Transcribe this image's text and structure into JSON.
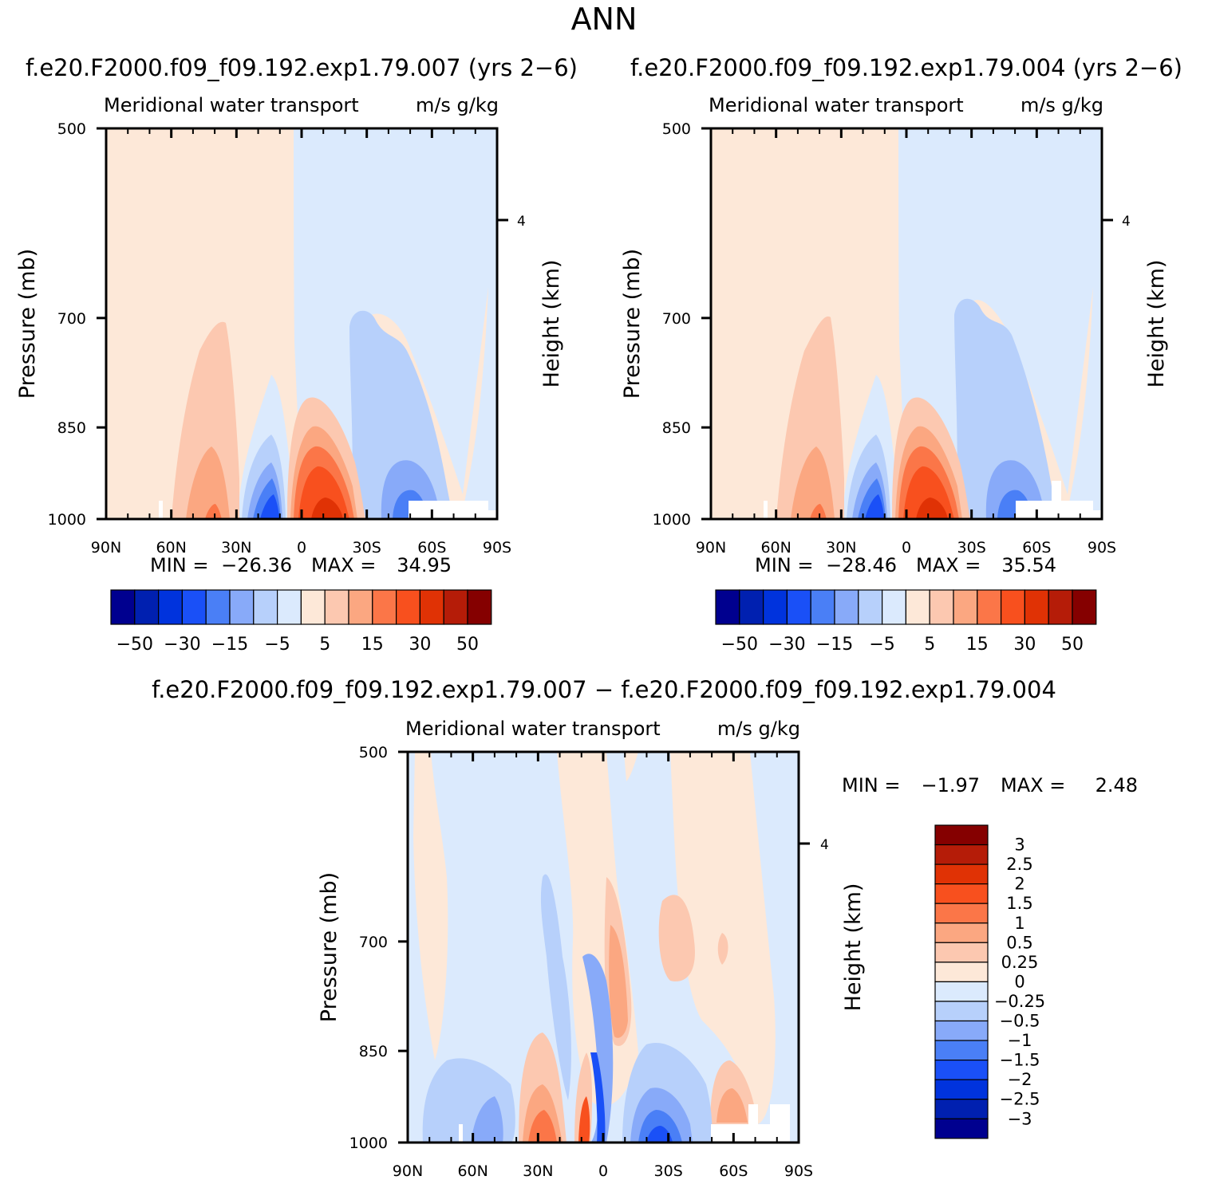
{
  "figure_title": "ANN",
  "chart_data": [
    {
      "type": "heatmap",
      "id": "p1",
      "case_title": "f.e20.F2000.f09_f09.192.exp1.79.007 (yrs 2−6)",
      "title_left": "Meridional water transport",
      "title_right": "m/s g/kg",
      "ylabel": "Pressure (mb)",
      "ylabel_right": "Height (km)",
      "x_tick_labels": [
        "90N",
        "60N",
        "30N",
        "0",
        "30S",
        "60S",
        "90S"
      ],
      "y_tick_labels": [
        "500",
        "700",
        "850",
        "1000"
      ],
      "y_tick_values": [
        500,
        700,
        850,
        1000
      ],
      "ylim": [
        500,
        1000
      ],
      "right_tick_label": "4",
      "min_label": "MIN =",
      "min": "−26.36",
      "max_label": "MAX =",
      "max": "34.95",
      "levels": [
        "−50",
        "−30",
        "−15",
        "−5",
        "5",
        "15",
        "30",
        "50"
      ]
    },
    {
      "type": "heatmap",
      "id": "p2",
      "case_title": "f.e20.F2000.f09_f09.192.exp1.79.004 (yrs 2−6)",
      "title_left": "Meridional water transport",
      "title_right": "m/s g/kg",
      "ylabel": "Pressure (mb)",
      "ylabel_right": "Height (km)",
      "x_tick_labels": [
        "90N",
        "60N",
        "30N",
        "0",
        "30S",
        "60S",
        "90S"
      ],
      "y_tick_labels": [
        "500",
        "700",
        "850",
        "1000"
      ],
      "y_tick_values": [
        500,
        700,
        850,
        1000
      ],
      "ylim": [
        500,
        1000
      ],
      "right_tick_label": "4",
      "min_label": "MIN =",
      "min": "−28.46",
      "max_label": "MAX =",
      "max": "35.54",
      "levels": [
        "−50",
        "−30",
        "−15",
        "−5",
        "5",
        "15",
        "30",
        "50"
      ]
    },
    {
      "type": "heatmap",
      "id": "p3",
      "case_title": "f.e20.F2000.f09_f09.192.exp1.79.007 − f.e20.F2000.f09_f09.192.exp1.79.004",
      "title_left": "Meridional water transport",
      "title_right": "m/s g/kg",
      "ylabel": "Pressure (mb)",
      "ylabel_right": "Height (km)",
      "x_tick_labels": [
        "90N",
        "60N",
        "30N",
        "0",
        "30S",
        "60S",
        "90S"
      ],
      "y_tick_labels": [
        "500",
        "700",
        "850",
        "1000"
      ],
      "y_tick_values": [
        500,
        700,
        850,
        1000
      ],
      "ylim": [
        500,
        1000
      ],
      "right_tick_label": "4",
      "min_label": "MIN =",
      "min": "−1.97",
      "max_label": "MAX =",
      "max": "2.48",
      "levels": [
        "3",
        "2.5",
        "2",
        "1.5",
        "1",
        "0.5",
        "0.25",
        "0",
        "−0.25",
        "−0.5",
        "−1",
        "−1.5",
        "−2",
        "−2.5",
        "−3"
      ]
    }
  ],
  "palette": [
    "#00008f",
    "#0020b0",
    "#0033dd",
    "#1a50f7",
    "#4a7ff6",
    "#88aaf9",
    "#b7d0fb",
    "#dbeafd",
    "#fde8d8",
    "#fcc8b0",
    "#fba781",
    "#fb7648",
    "#f8501e",
    "#e03205",
    "#b51c08",
    "#850000"
  ]
}
